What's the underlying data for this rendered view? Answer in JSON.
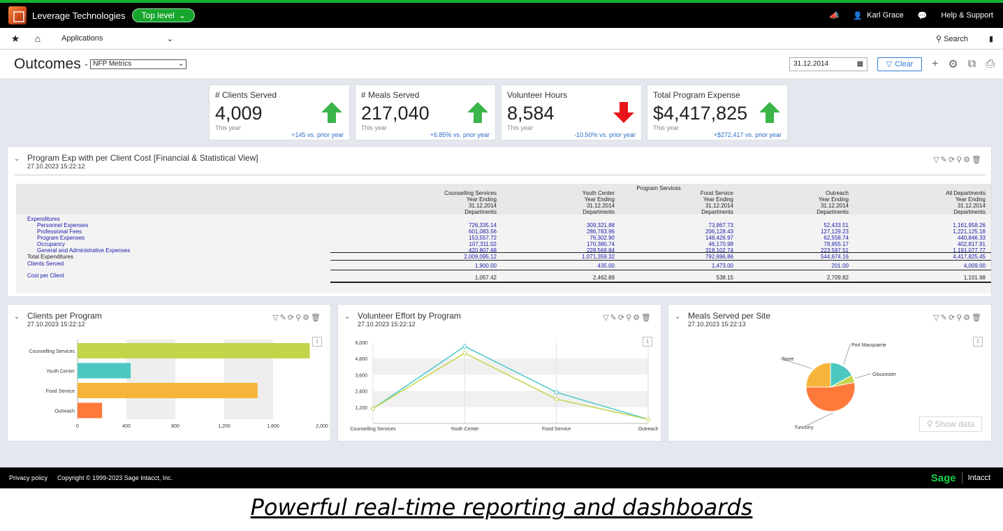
{
  "topbar": {
    "company": "Leverage Technologies",
    "level": "Top level",
    "user": "Karl Grace",
    "help": "Help & Support"
  },
  "nav": {
    "applications": "Applications",
    "search": "Search"
  },
  "titlebar": {
    "title": "Outcomes",
    "metric": "NFP Metrics",
    "date": "31.12.2014",
    "clear": "Clear"
  },
  "kpis": [
    {
      "label": "# Clients Served",
      "value": "4,009",
      "sub": "This year",
      "compare": "+145 vs. prior year",
      "trend": "up"
    },
    {
      "label": "# Meals Served",
      "value": "217,040",
      "sub": "This year",
      "compare": "+6.85% vs. prior year",
      "trend": "up"
    },
    {
      "label": "Volunteer Hours",
      "value": "8,584",
      "sub": "This year",
      "compare": "-10.50% vs. prior year",
      "trend": "down"
    },
    {
      "label": "Total Program Expense",
      "value": "$4,417,825",
      "sub": "This year",
      "compare": "+$272,417 vs. prior year",
      "trend": "up"
    }
  ],
  "report": {
    "title": "Program Exp with per Client Cost [Financial & Statistical View]",
    "timestamp": "27.10.2023 15:22:12",
    "group_header": "Program Services",
    "columns": [
      {
        "name": "Counselling Services",
        "l2": "Year Ending",
        "l3": "31.12.2014",
        "l4": "Departments"
      },
      {
        "name": "Youth Center",
        "l2": "Year Ending",
        "l3": "31.12.2014",
        "l4": "Departments"
      },
      {
        "name": "Food Service",
        "l2": "Year Ending",
        "l3": "31.12.2014",
        "l4": "Departments"
      },
      {
        "name": "Outreach",
        "l2": "Year Ending",
        "l3": "31.12.2014",
        "l4": "Departments"
      },
      {
        "name": "All Departments",
        "l2": "Year Ending",
        "l3": "31.12.2014",
        "l4": "Departments"
      }
    ],
    "expenditures_label": "Expenditures",
    "rows": [
      {
        "label": "Personnel Expenses",
        "values": [
          "726,335.14",
          "309,321.88",
          "73,867.73",
          "52,433.51",
          "1,161,958.26"
        ]
      },
      {
        "label": "Professional Fees",
        "values": [
          "601,083.56",
          "286,783.96",
          "206,128.43",
          "127,129.23",
          "1,221,125.18"
        ]
      },
      {
        "label": "Program Expenses",
        "values": [
          "153,557.72",
          "76,302.90",
          "148,426.97",
          "62,558.74",
          "440,846.33"
        ]
      },
      {
        "label": "Occupancy",
        "values": [
          "107,311.02",
          "170,380.74",
          "46,170.98",
          "78,955.17",
          "402,817.91"
        ]
      },
      {
        "label": "General and Administrative Expenses",
        "values": [
          "420,807.68",
          "228,569.84",
          "318,102.74",
          "223,597.51",
          "1,191,077.77"
        ]
      }
    ],
    "total": {
      "label": "Total Expenditures",
      "values": [
        "2,009,095.12",
        "1,071,359.32",
        "792,696.86",
        "544,674.16",
        "4,417,825.45"
      ]
    },
    "clients": {
      "label": "Clients Served",
      "values": [
        "1,900.00",
        "435.00",
        "1,473.00",
        "201.00",
        "4,009.00"
      ]
    },
    "cost": {
      "label": "Cost per Client",
      "values": [
        "1,057.42",
        "2,462.89",
        "538.15",
        "2,709.82",
        "1,101.98"
      ]
    }
  },
  "panels": {
    "clients": {
      "title": "Clients per Program",
      "timestamp": "27.10.2023 15:22:12"
    },
    "volunteer": {
      "title": "Volunteer Effort by Program",
      "timestamp": "27.10.2023 15:22:12"
    },
    "meals": {
      "title": "Meals Served per Site",
      "timestamp": "27.10.2023 15:22:13",
      "show_data": "Show data"
    }
  },
  "chart_data": [
    {
      "type": "bar",
      "orientation": "horizontal",
      "categories": [
        "Counselling Services",
        "Youth Center",
        "Food Service",
        "Outreach"
      ],
      "values": [
        1900,
        435,
        1473,
        201
      ],
      "colors": [
        "#c4d44a",
        "#4cc8c0",
        "#f6b53a",
        "#ff7a3a"
      ],
      "xlim": [
        0,
        2000
      ],
      "xticks": [
        "0",
        "400",
        "800",
        "1,200",
        "1,600",
        "2,000"
      ]
    },
    {
      "type": "line",
      "x": [
        "Counselling Services",
        "Youth Center",
        "Food Service",
        "Outreach"
      ],
      "series": [
        {
          "values": [
            1100,
            5700,
            2300,
            300
          ],
          "color": "#4cc8c8"
        },
        {
          "values": [
            1100,
            5200,
            1800,
            300
          ],
          "color": "#c4d44a"
        }
      ],
      "ylim": [
        0,
        6000
      ],
      "yticks": [
        "1,200",
        "2,400",
        "3,600",
        "4,800",
        "6,000"
      ]
    },
    {
      "type": "pie",
      "labels": [
        "Port Macquarrie",
        "Gloucester",
        "Tuncurry",
        "Taree"
      ],
      "values": [
        17,
        5,
        53,
        25
      ],
      "colors": [
        "#4cc8c0",
        "#c4d44a",
        "#ff7a3a",
        "#f6b53a"
      ]
    }
  ],
  "footer": {
    "privacy": "Privacy policy",
    "copyright": "Copyright © 1999-2023 Sage Intacct, Inc.",
    "brand": "Sage",
    "product": "Intacct"
  },
  "tagline": "Powerful real-time reporting and dashboards"
}
